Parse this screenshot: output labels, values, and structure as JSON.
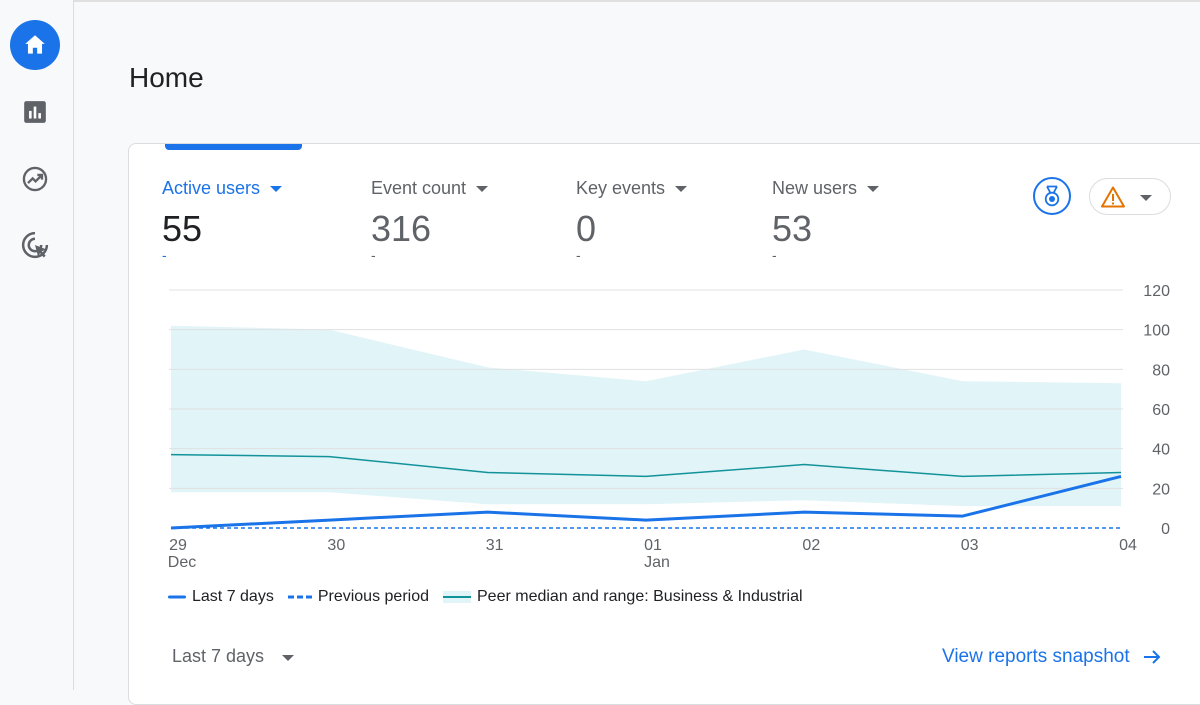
{
  "page": {
    "title": "Home"
  },
  "nav": {
    "items": [
      {
        "name": "home",
        "icon": "home-icon",
        "active": true
      },
      {
        "name": "reports",
        "icon": "bar-chart-icon",
        "active": false
      },
      {
        "name": "explore",
        "icon": "trending-icon",
        "active": false
      },
      {
        "name": "advertising",
        "icon": "target-cursor-icon",
        "active": false
      }
    ]
  },
  "metrics": [
    {
      "label": "Active users",
      "value": "55",
      "change": "-",
      "selected": true
    },
    {
      "label": "Event count",
      "value": "316",
      "change": "-",
      "selected": false
    },
    {
      "label": "Key events",
      "value": "0",
      "change": "-",
      "selected": false
    },
    {
      "label": "New users",
      "value": "53",
      "change": "-",
      "selected": false
    }
  ],
  "actions": {
    "benchmark_icon": "medal-icon",
    "insights_icon": "warning-icon"
  },
  "colors": {
    "primary": "#1a73e8",
    "peer_line": "#12939a",
    "peer_band": "#e1f4f8",
    "warning": "#e37400"
  },
  "chart_data": {
    "type": "line",
    "x": [
      "29",
      "30",
      "31",
      "01",
      "02",
      "03",
      "04"
    ],
    "x_sublabels": [
      "Dec",
      "",
      "",
      "Jan",
      "",
      "",
      ""
    ],
    "y_ticks": [
      0,
      20,
      40,
      60,
      80,
      100,
      120
    ],
    "ylim": [
      0,
      120
    ],
    "y_axis_position": "right",
    "grid": true,
    "legend_position": "bottom-left",
    "series": [
      {
        "name": "Last 7 days",
        "style": "solid",
        "values": [
          0,
          4,
          8,
          4,
          8,
          6,
          26
        ]
      },
      {
        "name": "Previous period",
        "style": "dashed",
        "values": [
          0,
          0,
          0,
          0,
          0,
          0,
          0
        ]
      },
      {
        "name": "Peer median and range: Business & Industrial",
        "style": "band",
        "median": [
          37,
          36,
          28,
          26,
          32,
          26,
          28
        ],
        "upper": [
          102,
          100,
          81,
          74,
          90,
          74,
          73
        ],
        "lower": [
          18,
          18,
          12,
          12,
          14,
          11,
          11
        ]
      }
    ]
  },
  "footer": {
    "date_range": "Last 7 days",
    "link": "View reports snapshot"
  }
}
